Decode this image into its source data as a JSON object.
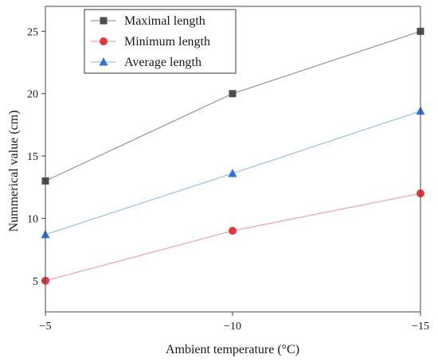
{
  "chart_data": {
    "type": "line",
    "x": [
      -5,
      -10,
      -15
    ],
    "x_tick_labels": [
      "−5",
      "−10",
      "−15"
    ],
    "xlabel": "Ambient temperature (°C)",
    "ylabel": "Nummerical value (cm)",
    "ylim": [
      2.5,
      27
    ],
    "y_ticks": [
      5,
      10,
      15,
      20,
      25
    ],
    "legend_position": "top-left",
    "grid": false,
    "series": [
      {
        "name": "Maximal length",
        "values": [
          13,
          20,
          25
        ],
        "color": "#9e9e9e",
        "marker_color": "#4d4d4d",
        "marker": "square"
      },
      {
        "name": "Minimum length",
        "values": [
          5,
          9,
          12
        ],
        "color": "#f2a8a8",
        "marker_color": "#e8373a",
        "marker": "circle"
      },
      {
        "name": "Average length",
        "values": [
          8.7,
          13.6,
          18.6
        ],
        "color": "#9ec6ec",
        "marker_color": "#2f74d8",
        "marker": "triangle"
      }
    ]
  }
}
